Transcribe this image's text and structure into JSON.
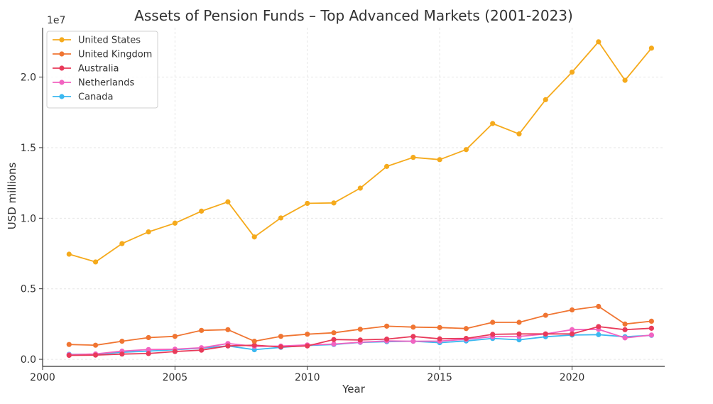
{
  "chart_data": {
    "type": "line",
    "title": "Assets of Pension Funds – Top Advanced Markets (2001-2023)",
    "xlabel": "Year",
    "ylabel": "USD millions",
    "y_offset_label": "1e7",
    "xlim": [
      2000,
      2023.5
    ],
    "ylim": [
      -0.05,
      2.35
    ],
    "x_ticks": [
      2000,
      2005,
      2010,
      2015,
      2020
    ],
    "y_ticks": [
      0.0,
      0.5,
      1.0,
      1.5,
      2.0
    ],
    "y_tick_labels": [
      "0.0",
      "0.5",
      "1.0",
      "1.5",
      "2.0"
    ],
    "grid": true,
    "legend_position": "top-left",
    "x": [
      2001,
      2002,
      2003,
      2004,
      2005,
      2006,
      2007,
      2008,
      2009,
      2010,
      2011,
      2012,
      2013,
      2014,
      2015,
      2016,
      2017,
      2018,
      2019,
      2020,
      2021,
      2022,
      2023
    ],
    "series": [
      {
        "name": "United States",
        "color": "#f5aa1c",
        "values": [
          0.745,
          0.69,
          0.82,
          0.903,
          0.965,
          1.05,
          1.116,
          0.867,
          1.002,
          1.105,
          1.108,
          1.213,
          1.367,
          1.431,
          1.415,
          1.486,
          1.671,
          1.597,
          1.84,
          2.035,
          2.25,
          1.977,
          2.205
        ]
      },
      {
        "name": "United Kingdom",
        "color": "#f07532",
        "values": [
          0.105,
          0.1,
          0.128,
          0.154,
          0.163,
          0.205,
          0.21,
          0.128,
          0.163,
          0.178,
          0.188,
          0.213,
          0.235,
          0.228,
          0.225,
          0.218,
          0.262,
          0.262,
          0.312,
          0.35,
          0.375,
          0.25,
          0.27
        ]
      },
      {
        "name": "Australia",
        "color": "#e83a5a",
        "values": [
          0.028,
          0.03,
          0.037,
          0.041,
          0.055,
          0.065,
          0.095,
          0.1,
          0.088,
          0.095,
          0.14,
          0.137,
          0.143,
          0.162,
          0.145,
          0.148,
          0.177,
          0.18,
          0.18,
          0.18,
          0.232,
          0.21,
          0.22
        ]
      },
      {
        "name": "Netherlands",
        "color": "#f263c1",
        "values": [
          0.032,
          0.038,
          0.058,
          0.069,
          0.072,
          0.082,
          0.112,
          0.092,
          0.094,
          0.102,
          0.108,
          0.121,
          0.13,
          0.128,
          0.129,
          0.142,
          0.161,
          0.162,
          0.18,
          0.21,
          0.212,
          0.152,
          0.172
        ]
      },
      {
        "name": "Canada",
        "color": "#3bb8f0",
        "values": [
          0.035,
          0.036,
          0.05,
          0.058,
          0.068,
          0.079,
          0.095,
          0.068,
          0.085,
          0.098,
          0.105,
          0.12,
          0.125,
          0.128,
          0.118,
          0.13,
          0.148,
          0.138,
          0.16,
          0.172,
          0.175,
          0.16,
          0.17
        ]
      }
    ]
  }
}
